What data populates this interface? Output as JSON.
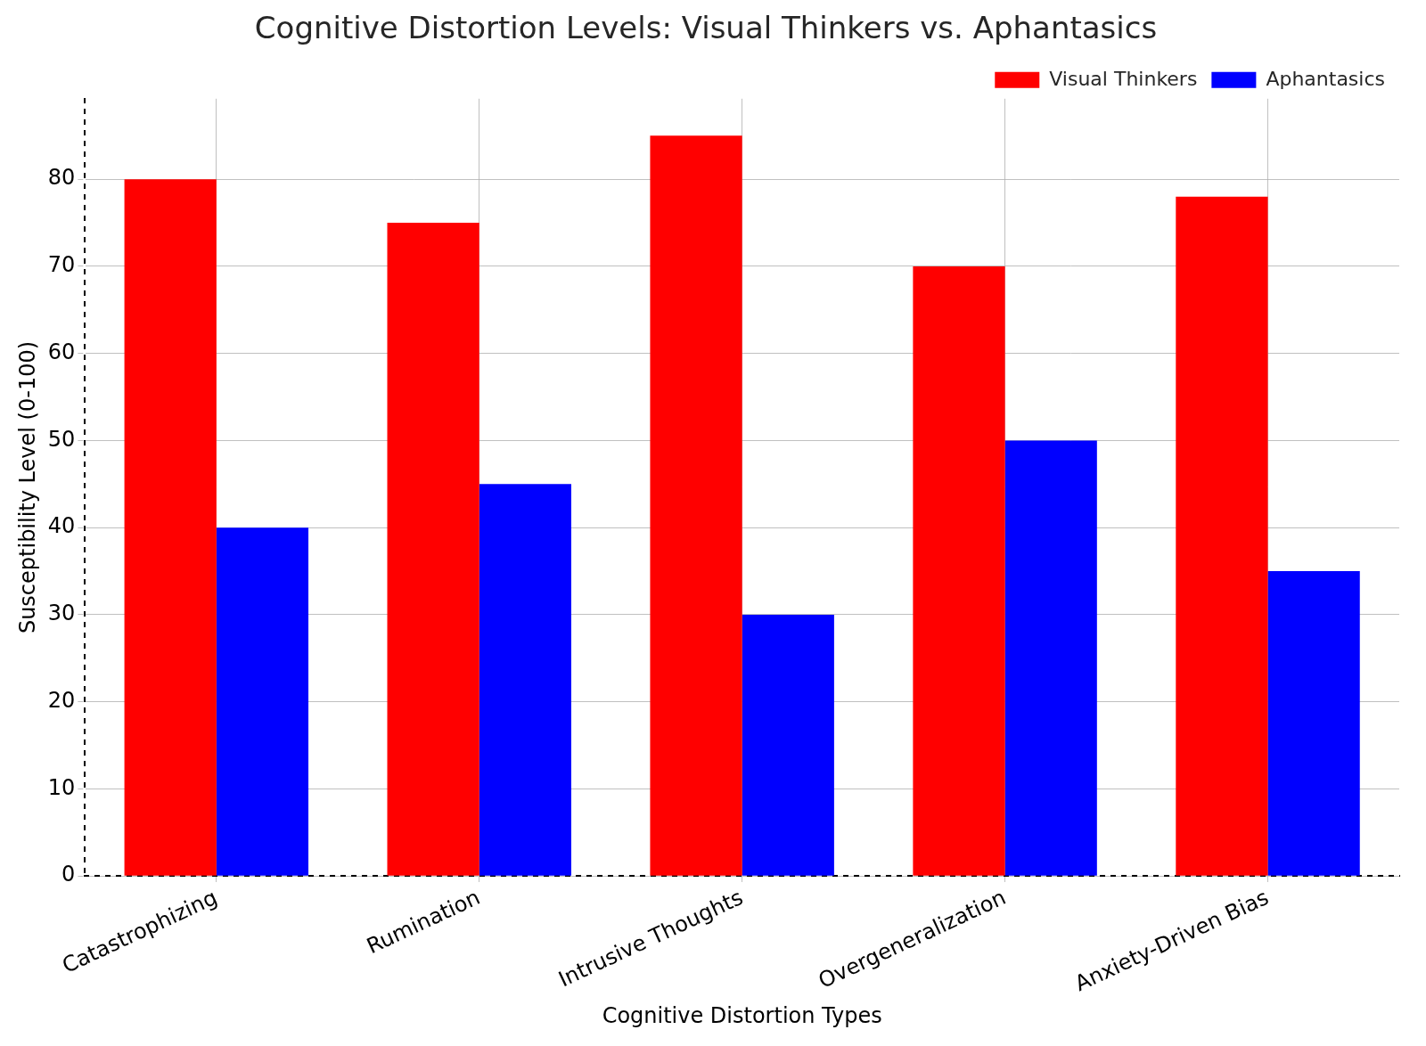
{
  "chart_data": {
    "type": "bar",
    "title": "Cognitive Distortion Levels: Visual Thinkers vs. Aphantasics",
    "x_label": "Cognitive Distortion Types",
    "y_label": "Susceptibility Level (0-100)",
    "categories": [
      "Catastrophizing",
      "Rumination",
      "Intrusive Thoughts",
      "Overgeneralization",
      "Anxiety-Driven Bias"
    ],
    "series": [
      {
        "name": "Visual Thinkers",
        "color": "#ff0000",
        "values": [
          80,
          75,
          85,
          70,
          78
        ]
      },
      {
        "name": "Aphantasics",
        "color": "#0000ff",
        "values": [
          40,
          45,
          30,
          50,
          35
        ]
      }
    ],
    "ylim": [
      0,
      89.25
    ],
    "yticks": [
      0,
      10,
      20,
      30,
      40,
      50,
      60,
      70,
      80
    ],
    "grid": true,
    "legend": "upper right"
  }
}
